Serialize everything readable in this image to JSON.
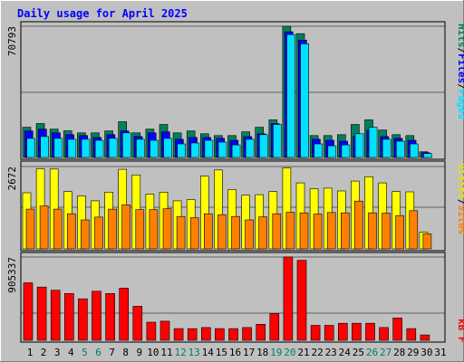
{
  "title": "Daily usage for April 2025",
  "colors": {
    "background": "#c0c0c0",
    "hits": "#00805c",
    "files": "#0000ff",
    "pages": "#00e0ff",
    "visits": "#ffff00",
    "sites": "#ff8000",
    "kbytes": "#ff0000",
    "title": "#0000ff",
    "weekend_label": "#00805c"
  },
  "chart_data": [
    {
      "type": "bar",
      "panel": "hits-files-pages",
      "categories": [
        "1",
        "2",
        "3",
        "4",
        "5",
        "6",
        "7",
        "8",
        "9",
        "10",
        "11",
        "12",
        "13",
        "14",
        "15",
        "16",
        "17",
        "18",
        "19",
        "20",
        "21",
        "22",
        "23",
        "24",
        "25",
        "26",
        "27",
        "28",
        "29",
        "30",
        "31"
      ],
      "weekend_days": [
        "5",
        "6",
        "12",
        "13",
        "19",
        "20",
        "26",
        "27"
      ],
      "max_label": "70793",
      "ylim": [
        0,
        70793
      ],
      "series": [
        {
          "name": "Hits",
          "values": [
            16300,
            18300,
            15300,
            14400,
            13300,
            13300,
            14300,
            19300,
            13300,
            15300,
            17800,
            13300,
            14300,
            12800,
            11800,
            11800,
            13800,
            16300,
            20300,
            70793,
            66800,
            11800,
            11800,
            12300,
            17800,
            20300,
            14800,
            12300,
            11800,
            3100,
            0
          ]
        },
        {
          "name": "Files",
          "values": [
            14300,
            15300,
            13300,
            12300,
            11800,
            10800,
            12300,
            14300,
            11300,
            13300,
            13800,
            9800,
            10800,
            10800,
            10300,
            9300,
            11300,
            12800,
            18300,
            67800,
            63300,
            9800,
            9300,
            8800,
            11300,
            14800,
            11300,
            10300,
            9300,
            2600,
            0
          ]
        },
        {
          "name": "Pages",
          "values": [
            10300,
            11300,
            10300,
            9800,
            9800,
            9300,
            10300,
            13300,
            9800,
            9300,
            10300,
            7300,
            7800,
            9300,
            8300,
            6800,
            9800,
            12300,
            17800,
            66300,
            61300,
            7300,
            6300,
            6800,
            12800,
            16300,
            9800,
            8800,
            7300,
            2100,
            0
          ]
        }
      ],
      "legend": [
        "Pages",
        "Files",
        "Hits"
      ]
    },
    {
      "type": "bar",
      "panel": "visits-sites",
      "categories": [
        "1",
        "2",
        "3",
        "4",
        "5",
        "6",
        "7",
        "8",
        "9",
        "10",
        "11",
        "12",
        "13",
        "14",
        "15",
        "16",
        "17",
        "18",
        "19",
        "20",
        "21",
        "22",
        "23",
        "24",
        "25",
        "26",
        "27",
        "28",
        "29",
        "30",
        "31"
      ],
      "max_label": "2672",
      "ylim": [
        0,
        2672
      ],
      "series": [
        {
          "name": "Visits",
          "values": [
            1820,
            2600,
            2590,
            1860,
            1720,
            1560,
            1840,
            2580,
            2400,
            1780,
            1840,
            1560,
            1600,
            2360,
            2560,
            1920,
            1740,
            1760,
            1860,
            2630,
            2140,
            1950,
            1970,
            1880,
            2200,
            2340,
            2140,
            1860,
            1850,
            540,
            0
          ]
        },
        {
          "name": "Sites",
          "values": [
            1290,
            1390,
            1290,
            1140,
            940,
            1030,
            1290,
            1430,
            1270,
            1270,
            1300,
            1050,
            1010,
            1140,
            1110,
            1050,
            940,
            1040,
            1140,
            1190,
            1170,
            1130,
            1180,
            1170,
            1550,
            1170,
            1160,
            1080,
            1240,
            490,
            0
          ]
        }
      ],
      "legend": [
        "Sites",
        "Visits"
      ]
    },
    {
      "type": "bar",
      "panel": "kbytes",
      "categories": [
        "1",
        "2",
        "3",
        "4",
        "5",
        "6",
        "7",
        "8",
        "9",
        "10",
        "11",
        "12",
        "13",
        "14",
        "15",
        "16",
        "17",
        "18",
        "19",
        "20",
        "21",
        "22",
        "23",
        "24",
        "25",
        "26",
        "27",
        "28",
        "29",
        "30",
        "31"
      ],
      "max_label": "905337",
      "ylim": [
        0,
        905337
      ],
      "series": [
        {
          "name": "KBytes",
          "values": [
            625000,
            579000,
            544000,
            509000,
            451000,
            533000,
            509000,
            567000,
            370000,
            197000,
            208000,
            127000,
            127000,
            139000,
            127000,
            127000,
            139000,
            174000,
            290000,
            905337,
            870000,
            162000,
            162000,
            185000,
            185000,
            185000,
            139000,
            243000,
            127000,
            58000,
            0
          ]
        }
      ],
      "legend": [
        "KBytes"
      ]
    }
  ],
  "legend_labels": {
    "pages": "Pages",
    "files": "Files",
    "hits": "Hits",
    "sites": "Sites",
    "visits": "Visits",
    "kbytes": "kB F"
  },
  "separator": "/"
}
